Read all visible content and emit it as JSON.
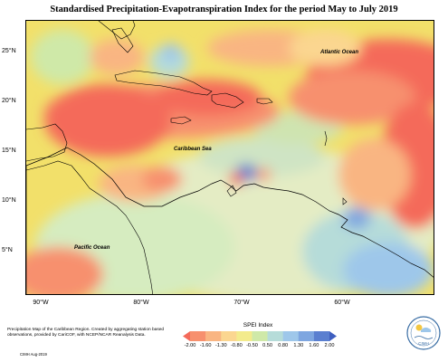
{
  "title": "Standardised Precipitation-Evapotranspiration Index for the period May to July 2019",
  "map": {
    "lat_labels": [
      "25°N",
      "20°N",
      "15°N",
      "10°N",
      "5°N"
    ],
    "lon_labels": [
      "90°W",
      "80°W",
      "70°W",
      "60°W"
    ],
    "labels": {
      "atlantic": "Atlantic Ocean",
      "caribbean": "Caribbean Sea",
      "pacific": "Pacific Ocean"
    }
  },
  "footer": {
    "description": "Precipitation Map of the Caribbean Region. Created by aggregating station based observations, provided by CariCOF, with NCEP/NCAR Reanalysis Data.",
    "credit": "CIMH Aug-2019"
  },
  "legend": {
    "title": "SPEI Index",
    "ticks": [
      "-2.00",
      "-1.60",
      "-1.30",
      "-0.80",
      "-0.50",
      "0.50",
      "0.80",
      "1.30",
      "1.60",
      "2.00"
    ],
    "colors": [
      "#f46a5a",
      "#f7906e",
      "#f9b582",
      "#fbd690",
      "#f3eb8c",
      "#cfe9a8",
      "#b6dcd9",
      "#9ec7ea",
      "#7ea6e0",
      "#5a7fd0",
      "#3f5fc0"
    ]
  },
  "logo": {
    "text": "CIMH"
  }
}
